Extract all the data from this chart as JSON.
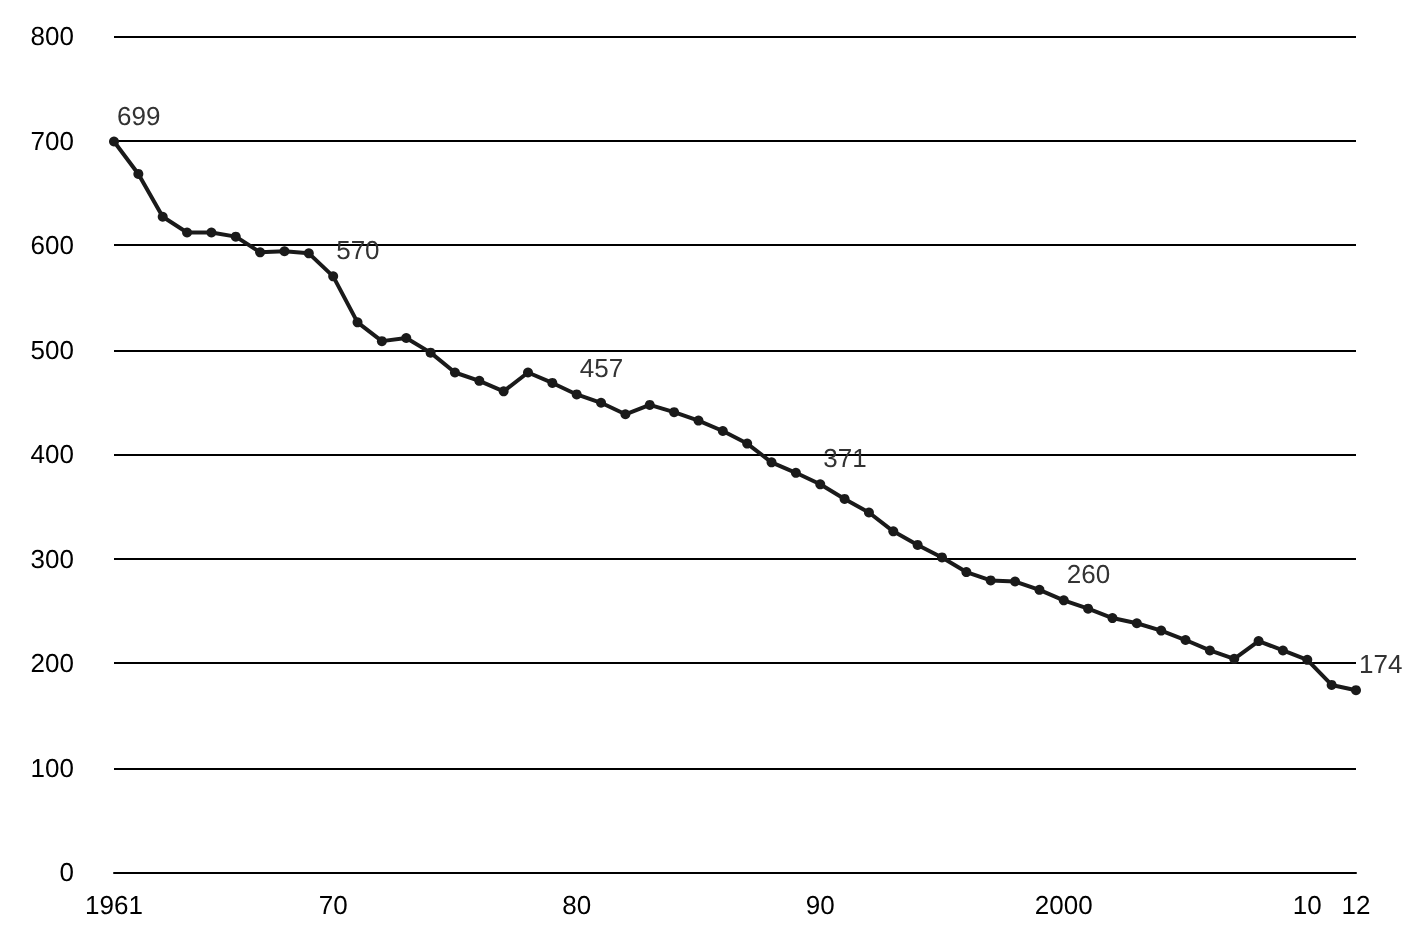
{
  "chart_data": {
    "type": "line",
    "categories": [
      "1961",
      null,
      null,
      null,
      null,
      null,
      null,
      null,
      null,
      "70",
      null,
      null,
      null,
      null,
      null,
      null,
      null,
      null,
      null,
      "80",
      null,
      null,
      null,
      null,
      null,
      null,
      null,
      null,
      null,
      "90",
      null,
      null,
      null,
      null,
      null,
      null,
      null,
      null,
      null,
      "2000",
      null,
      null,
      null,
      null,
      null,
      null,
      null,
      null,
      null,
      "10",
      null,
      "12"
    ],
    "series": [
      {
        "color": "#1a1a1a",
        "values": [
          699,
          668,
          627,
          612,
          612,
          608,
          593,
          594,
          592,
          570,
          526,
          508,
          511,
          497,
          478,
          470,
          460,
          478,
          468,
          457,
          449,
          438,
          447,
          440,
          432,
          422,
          410,
          392,
          382,
          371,
          357,
          344,
          326,
          313,
          301,
          287,
          279,
          278,
          270,
          260,
          252,
          243,
          238,
          231,
          222,
          212,
          204,
          221,
          212,
          203,
          179,
          174
        ],
        "value_labels": [
          "699",
          null,
          null,
          null,
          null,
          null,
          null,
          null,
          null,
          "570",
          null,
          null,
          null,
          null,
          null,
          null,
          null,
          null,
          null,
          "457",
          null,
          null,
          null,
          null,
          null,
          null,
          null,
          null,
          null,
          "371",
          null,
          null,
          null,
          null,
          null,
          null,
          null,
          null,
          null,
          "260",
          null,
          null,
          null,
          null,
          null,
          null,
          null,
          null,
          null,
          null,
          null,
          "174"
        ]
      }
    ],
    "ylim": [
      0,
      800
    ],
    "yticks": [
      0,
      100,
      200,
      300,
      400,
      500,
      600,
      700,
      800
    ],
    "grid": "y",
    "marker": "circle",
    "line_style": "solid"
  }
}
